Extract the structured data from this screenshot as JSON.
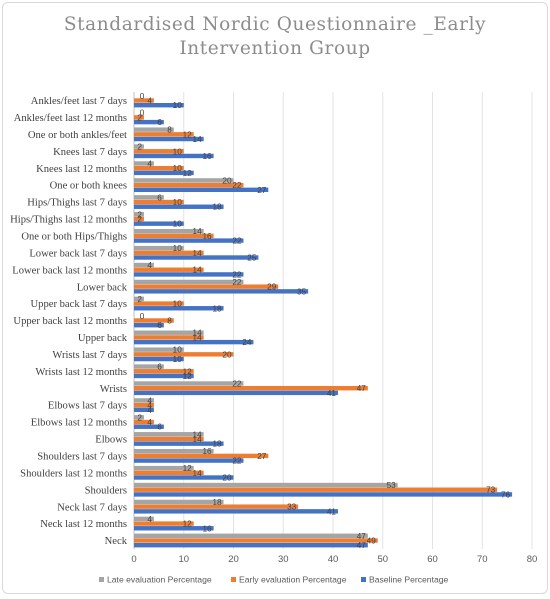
{
  "chart_data": {
    "type": "bar",
    "orientation": "horizontal",
    "title": "Standardised Nordic Questionnaire _Early Intervention Group",
    "title_lines": [
      "Standardised Nordic Questionnaire _Early",
      "Intervention Group"
    ],
    "categories": [
      "Ankles/feet last 7 days",
      "Ankles/feet last 12 months",
      "One or both ankles/feet",
      "Knees last 7 days",
      "Knees last 12 months",
      "One or both knees",
      "Hips/Thighs last 7 days",
      "Hips/Thighs last 12 months",
      "One or both Hips/Thighs",
      "Lower back last 7 days",
      "Lower back last 12 months",
      "Lower back",
      "Upper back last 7 days",
      "Upper back last 12 months",
      "Upper back",
      "Wrists last 7 days",
      "Wrists last 12 months",
      "Wrists",
      "Elbows last 7 days",
      "Elbows last 12 months",
      "Elbows",
      "Shoulders last 7 days",
      "Shoulders last 12 months",
      "Shoulders",
      "Neck last 7 days",
      "Neck last 12 months",
      "Neck"
    ],
    "series": [
      {
        "name": "Late evaluation Percentage",
        "color": "#a5a5a5",
        "values": [
          0,
          0,
          8,
          2,
          4,
          20,
          6,
          2,
          14,
          10,
          4,
          22,
          2,
          0,
          14,
          10,
          6,
          22,
          4,
          2,
          14,
          16,
          12,
          53,
          18,
          4,
          47
        ]
      },
      {
        "name": "Early evaluation Percentage",
        "color": "#ed7d31",
        "values": [
          4,
          2,
          12,
          10,
          10,
          22,
          10,
          2,
          16,
          14,
          14,
          29,
          10,
          8,
          14,
          20,
          12,
          47,
          4,
          4,
          14,
          27,
          14,
          73,
          33,
          12,
          49
        ]
      },
      {
        "name": "Baseline Percentage",
        "color": "#4472c4",
        "values": [
          10,
          6,
          14,
          16,
          12,
          27,
          18,
          10,
          22,
          25,
          22,
          35,
          18,
          6,
          24,
          10,
          12,
          41,
          4,
          6,
          18,
          22,
          20,
          76,
          41,
          16,
          47
        ]
      }
    ],
    "xlim": [
      0,
      80
    ],
    "x_ticks": [
      "0",
      "10",
      "20",
      "30",
      "40",
      "50",
      "60",
      "70",
      "80"
    ],
    "grid": true,
    "legend_position": "bottom"
  }
}
